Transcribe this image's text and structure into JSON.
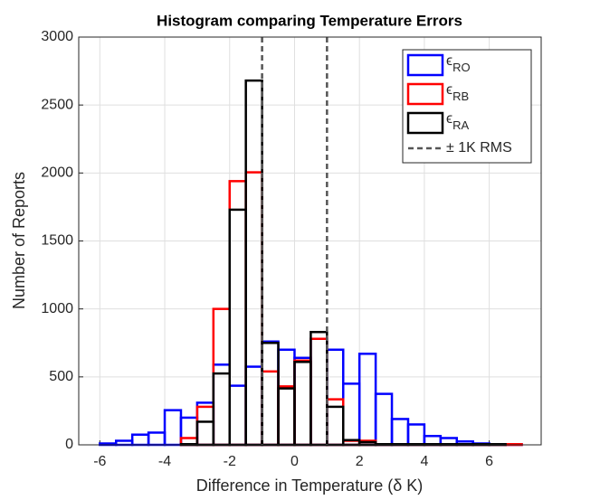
{
  "chart_data": {
    "type": "histogram",
    "title": "Histogram comparing Temperature Errors",
    "x_label": "Difference in Temperature (δ K)",
    "y_label": "Number of Reports",
    "bins": [
      -6,
      -5.5,
      -5,
      -4.5,
      -4,
      -3.5,
      -3,
      -2.5,
      -2,
      -1.5,
      -1,
      -0.5,
      0,
      0.5,
      1,
      1.5,
      2,
      2.5,
      3,
      3.5,
      4,
      4.5,
      5,
      5.5,
      6,
      6.5,
      7
    ],
    "series": [
      {
        "name": "ϵRO",
        "color": "#0000ff",
        "values": [
          10,
          30,
          75,
          90,
          255,
          200,
          310,
          590,
          435,
          575,
          760,
          700,
          640,
          780,
          700,
          450,
          670,
          375,
          190,
          150,
          65,
          50,
          25,
          10,
          5,
          5
        ]
      },
      {
        "name": "ϵRB",
        "color": "#ff0000",
        "values": [
          0,
          0,
          0,
          0,
          0,
          50,
          280,
          1000,
          1940,
          2005,
          540,
          430,
          620,
          780,
          335,
          30,
          30,
          5,
          5,
          5,
          5,
          5,
          5,
          5,
          5,
          5
        ]
      },
      {
        "name": "ϵRA",
        "color": "#000000",
        "values": [
          0,
          0,
          0,
          0,
          0,
          5,
          170,
          525,
          1730,
          2680,
          750,
          415,
          610,
          830,
          280,
          35,
          20,
          5,
          5,
          5,
          5,
          5,
          5,
          5,
          5,
          0
        ]
      }
    ],
    "vlines": [
      -1,
      1
    ],
    "vline_label": "± 1K RMS",
    "vline_color": "#555555",
    "xlim": [
      -6.65,
      7.6
    ],
    "ylim": [
      0,
      3000
    ],
    "xticks": [
      -6,
      -4,
      -2,
      0,
      2,
      4,
      6
    ],
    "yticks": [
      0,
      500,
      1000,
      1500,
      2000,
      2500,
      3000
    ],
    "grid": true,
    "legend": "upper right"
  }
}
